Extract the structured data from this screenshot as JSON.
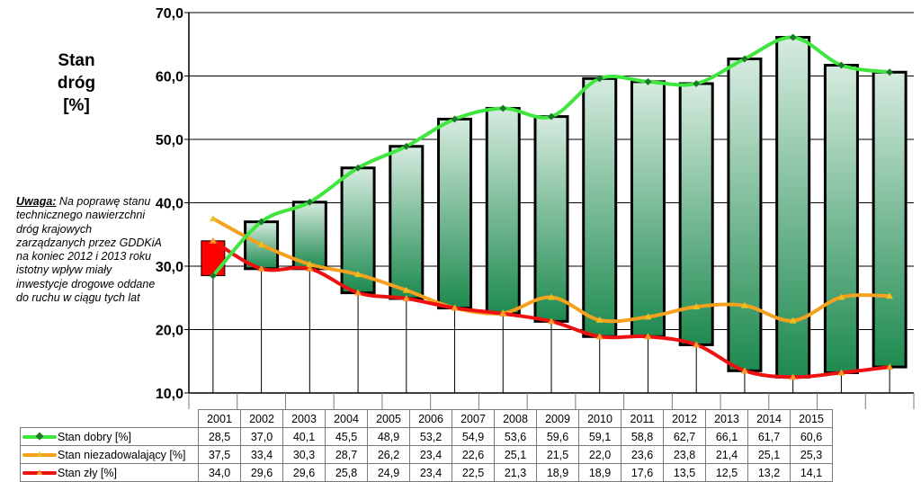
{
  "chart_data": {
    "type": "line",
    "ylabel_lines": [
      "Stan",
      "dróg",
      "[%]"
    ],
    "ylim": [
      10,
      70
    ],
    "yticks": [
      "10,0",
      "20,0",
      "30,0",
      "40,0",
      "50,0",
      "60,0",
      "70,0"
    ],
    "ytick_values": [
      10,
      20,
      30,
      40,
      50,
      60,
      70
    ],
    "categories": [
      "2001",
      "2002",
      "2003",
      "2004",
      "2005",
      "2006",
      "2007",
      "2008",
      "2009",
      "2010",
      "2011",
      "2012",
      "2013",
      "2014",
      "2015"
    ],
    "series": [
      {
        "name": "Stan dobry [%]",
        "values": [
          28.5,
          37.0,
          40.1,
          45.5,
          48.9,
          53.2,
          54.9,
          53.6,
          59.6,
          59.1,
          58.8,
          62.7,
          66.1,
          61.7,
          60.6
        ],
        "labels": [
          "28,5",
          "37,0",
          "40,1",
          "45,5",
          "48,9",
          "53,2",
          "54,9",
          "53,6",
          "59,6",
          "59,1",
          "58,8",
          "62,7",
          "66,1",
          "61,7",
          "60,6"
        ],
        "color": "#3ee63e",
        "marker_color": "#1a7a2a"
      },
      {
        "name": "Stan niezadowalający [%]",
        "values": [
          37.5,
          33.4,
          30.3,
          28.7,
          26.2,
          23.4,
          22.6,
          25.1,
          21.5,
          22.0,
          23.6,
          23.8,
          21.4,
          25.1,
          25.3
        ],
        "labels": [
          "37,5",
          "33,4",
          "30,3",
          "28,7",
          "26,2",
          "23,4",
          "22,6",
          "25,1",
          "21,5",
          "22,0",
          "23,6",
          "23,8",
          "21,4",
          "25,1",
          "25,3"
        ],
        "color": "#f5a11e",
        "marker_color": "#e8c020"
      },
      {
        "name": "Stan zły  [%]",
        "values": [
          34.0,
          29.6,
          29.6,
          25.8,
          24.9,
          23.4,
          22.5,
          21.3,
          18.9,
          18.9,
          17.6,
          13.5,
          12.5,
          13.2,
          14.1
        ],
        "labels": [
          "34,0",
          "29,6",
          "29,6",
          "25,8",
          "24,9",
          "23,4",
          "22,5",
          "21,3",
          "18,9",
          "18,9",
          "17,6",
          "13,5",
          "12,5",
          "13,2",
          "14,1"
        ],
        "color": "#ee1111",
        "marker_color": "#ff9a2a"
      }
    ],
    "grid": true,
    "legend": "data-table"
  },
  "note": {
    "lead": "Uwaga:",
    "text": " Na poprawę stanu technicznego nawierzchni dróg krajowych zarządzanych przez GDDKiA na koniec 2012 i 2013 roku istotny wpływ miały inwestycje drogowe oddane do ruchu w ciągu tych lat"
  },
  "colors": {
    "box_fill_top": "#d6ebdf",
    "box_fill_bottom": "#1d8a4f",
    "first_box": "#ff0000"
  }
}
